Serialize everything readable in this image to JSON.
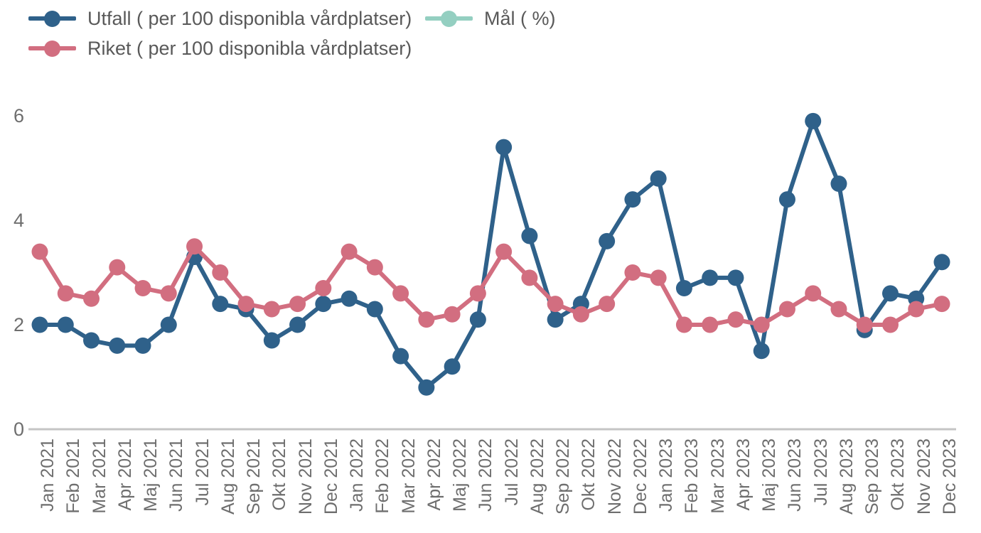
{
  "legend": {
    "items": [
      {
        "id": "utfall",
        "label": "Utfall ( per 100 disponibla vårdplatser)",
        "color": "#2F618A"
      },
      {
        "id": "mal",
        "label": "Mål ( %)",
        "color": "#94CFC1"
      },
      {
        "id": "riket",
        "label": "Riket ( per 100 disponibla vårdplatser)",
        "color": "#D26E80"
      }
    ]
  },
  "chart_data": {
    "type": "line",
    "title": "",
    "xlabel": "",
    "ylabel": "",
    "ylim": [
      0,
      6
    ],
    "yticks": [
      0,
      2,
      4,
      6
    ],
    "grid": false,
    "legend_position": "top-left",
    "background": "#ffffff",
    "axis_line_color": "#c5c5c5",
    "axis_text_color": "#6e6e6e",
    "x": [
      "Jan 2021",
      "Feb 2021",
      "Mar 2021",
      "Apr 2021",
      "Maj 2021",
      "Jun 2021",
      "Jul 2021",
      "Aug 2021",
      "Sep 2021",
      "Okt 2021",
      "Nov 2021",
      "Dec 2021",
      "Jan 2022",
      "Feb 2022",
      "Mar 2022",
      "Apr 2022",
      "Maj 2022",
      "Jun 2022",
      "Jul 2022",
      "Aug 2022",
      "Sep 2022",
      "Okt 2022",
      "Nov 2022",
      "Dec 2022",
      "Jan 2023",
      "Feb 2023",
      "Mar 2023",
      "Apr 2023",
      "Maj 2023",
      "Jun 2023",
      "Jul 2023",
      "Aug 2023",
      "Sep 2023",
      "Okt 2023",
      "Nov 2023",
      "Dec 2023"
    ],
    "series": [
      {
        "name": "Utfall ( per 100 disponibla vårdplatser)",
        "color": "#2F618A",
        "values": [
          2.0,
          2.0,
          1.7,
          1.6,
          1.6,
          2.0,
          3.3,
          2.4,
          2.3,
          1.7,
          2.0,
          2.4,
          2.5,
          2.3,
          1.4,
          0.8,
          1.2,
          2.1,
          5.4,
          3.7,
          2.1,
          2.4,
          3.6,
          4.4,
          4.8,
          2.7,
          2.9,
          2.9,
          1.5,
          4.4,
          5.9,
          4.7,
          1.9,
          2.6,
          2.5,
          3.2
        ]
      },
      {
        "name": "Riket ( per 100 disponibla vårdplatser)",
        "color": "#D26E80",
        "values": [
          3.4,
          2.6,
          2.5,
          3.1,
          2.7,
          2.6,
          3.5,
          3.0,
          2.4,
          2.3,
          2.4,
          2.7,
          3.4,
          3.1,
          2.6,
          2.1,
          2.2,
          2.6,
          3.4,
          2.9,
          2.4,
          2.2,
          2.4,
          3.0,
          2.9,
          2.0,
          2.0,
          2.1,
          2.0,
          2.3,
          2.6,
          2.3,
          2.0,
          2.0,
          2.3,
          2.4
        ]
      },
      {
        "name": "Mål ( %)",
        "color": "#94CFC1",
        "values": []
      }
    ]
  }
}
